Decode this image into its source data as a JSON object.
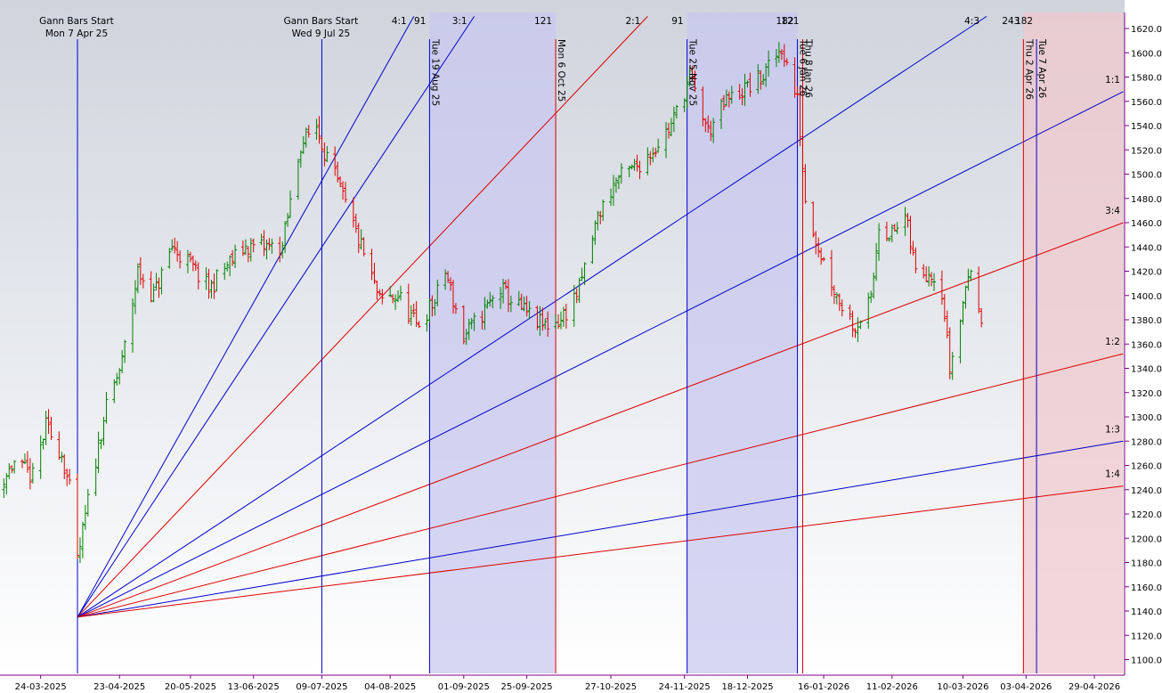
{
  "chart_data": {
    "type": "ohlc",
    "title": "",
    "xlabel": "",
    "ylabel": "",
    "ylim": [
      1090,
      1630
    ],
    "grid": false,
    "legend": "none",
    "y_ticks": [
      "1100.0",
      "1120.0",
      "1140.0",
      "1160.0",
      "1180.0",
      "1200.0",
      "1220.0",
      "1240.0",
      "1260.0",
      "1280.0",
      "1300.0",
      "1320.0",
      "1340.0",
      "1360.0",
      "1380.0",
      "1400.0",
      "1420.0",
      "1440.0",
      "1460.0",
      "1480.0",
      "1500.0",
      "1520.0",
      "1540.0",
      "1560.0",
      "1580.0",
      "1600.0",
      "1620.0"
    ],
    "x_ticks": [
      "24-03-2025",
      "23-04-2025",
      "20-05-2025",
      "13-06-2025",
      "09-07-2025",
      "04-08-2025",
      "01-09-2025",
      "25-09-2025",
      "27-10-2025",
      "24-11-2025",
      "18-12-2025",
      "16-01-2026",
      "11-02-2026",
      "10-03-2026",
      "03-04-2026",
      "29-04-2026"
    ],
    "colors": {
      "up": "#008000",
      "down": "#dd0000",
      "blue_line": "#0000cc",
      "red_line": "#dd0000",
      "blue_zone": "#c8c8f0",
      "red_zone": "#f0c8cc"
    },
    "price_path": [
      [
        "2025-03-05",
        1235
      ],
      [
        "2025-03-14",
        1262
      ],
      [
        "2025-03-21",
        1250
      ],
      [
        "2025-03-26",
        1292
      ],
      [
        "2025-04-01",
        1270
      ],
      [
        "2025-04-04",
        1240
      ],
      [
        "2025-04-07",
        1180
      ],
      [
        "2025-04-11",
        1230
      ],
      [
        "2025-04-17",
        1300
      ],
      [
        "2025-04-24",
        1345
      ],
      [
        "2025-04-30",
        1420
      ],
      [
        "2025-05-06",
        1400
      ],
      [
        "2025-05-13",
        1440
      ],
      [
        "2025-05-20",
        1425
      ],
      [
        "2025-05-27",
        1405
      ],
      [
        "2025-06-03",
        1425
      ],
      [
        "2025-06-10",
        1440
      ],
      [
        "2025-06-17",
        1440
      ],
      [
        "2025-06-24",
        1440
      ],
      [
        "2025-07-01",
        1525
      ],
      [
        "2025-07-07",
        1540
      ],
      [
        "2025-07-10",
        1520
      ],
      [
        "2025-07-17",
        1480
      ],
      [
        "2025-07-24",
        1440
      ],
      [
        "2025-07-31",
        1395
      ],
      [
        "2025-08-07",
        1400
      ],
      [
        "2025-08-14",
        1375
      ],
      [
        "2025-08-21",
        1395
      ],
      [
        "2025-08-25",
        1420
      ],
      [
        "2025-09-01",
        1365
      ],
      [
        "2025-09-08",
        1385
      ],
      [
        "2025-09-15",
        1405
      ],
      [
        "2025-09-22",
        1390
      ],
      [
        "2025-10-01",
        1375
      ],
      [
        "2025-10-08",
        1380
      ],
      [
        "2025-10-15",
        1405
      ],
      [
        "2025-10-22",
        1465
      ],
      [
        "2025-10-29",
        1495
      ],
      [
        "2025-11-05",
        1505
      ],
      [
        "2025-11-12",
        1520
      ],
      [
        "2025-11-19",
        1540
      ],
      [
        "2025-11-26",
        1580
      ],
      [
        "2025-12-03",
        1535
      ],
      [
        "2025-12-10",
        1560
      ],
      [
        "2025-12-17",
        1570
      ],
      [
        "2025-12-24",
        1580
      ],
      [
        "2025-12-31",
        1605
      ],
      [
        "2026-01-06",
        1560
      ],
      [
        "2026-01-09",
        1480
      ],
      [
        "2026-01-14",
        1440
      ],
      [
        "2026-01-21",
        1400
      ],
      [
        "2026-01-28",
        1375
      ],
      [
        "2026-02-03",
        1395
      ],
      [
        "2026-02-06",
        1460
      ],
      [
        "2026-02-11",
        1450
      ],
      [
        "2026-02-16",
        1465
      ],
      [
        "2026-02-20",
        1420
      ],
      [
        "2026-02-26",
        1420
      ],
      [
        "2026-03-02",
        1405
      ],
      [
        "2026-03-05",
        1340
      ],
      [
        "2026-03-09",
        1380
      ],
      [
        "2026-03-12",
        1420
      ],
      [
        "2026-03-17",
        1385
      ]
    ],
    "start_markers": [
      {
        "date": "2025-04-07",
        "label": "Gann Bars Start",
        "sublabel": "Mon 7 Apr 25"
      },
      {
        "date": "2025-07-09",
        "label": "Gann Bars Start",
        "sublabel": "Wed 9 Jul 25"
      }
    ],
    "time_markers": [
      {
        "date": "2025-08-19",
        "label": "Tue 19 Aug 25",
        "count": "91",
        "color": "blue"
      },
      {
        "date": "2025-10-06",
        "label": "Mon 6 Oct 25",
        "count": "121",
        "color": "red"
      },
      {
        "date": "2025-11-25",
        "label": "Tue 25 Nov 25",
        "count": "91",
        "color": "blue"
      },
      {
        "date": "2026-01-06",
        "label": "Tue 6 Jan 26",
        "count": "182",
        "color": "blue"
      },
      {
        "date": "2026-01-08",
        "label": "Thu 8 Jan 26",
        "count": "121",
        "color": "red"
      },
      {
        "date": "2026-04-02",
        "label": "Thu 2 Apr 26",
        "count": "243",
        "color": "red"
      },
      {
        "date": "2026-04-07",
        "label": "Tue 7 Apr 26",
        "count": "182",
        "color": "blue"
      }
    ],
    "zones": [
      {
        "from": "2025-08-19",
        "to": "2025-10-06",
        "color": "blue"
      },
      {
        "from": "2025-11-25",
        "to": "2026-01-06",
        "color": "blue"
      },
      {
        "from": "2026-04-02",
        "to": "2026-05-10",
        "color": "red"
      }
    ],
    "gann_fan": {
      "origin": [
        "2025-04-07",
        1135
      ],
      "lines": [
        {
          "label": "4:1",
          "end": [
            "2025-08-13",
            1630
          ],
          "color": "blue"
        },
        {
          "label": "3:1",
          "end": [
            "2025-09-05",
            1630
          ],
          "color": "blue"
        },
        {
          "label": "2:1",
          "end": [
            "2025-11-10",
            1630
          ],
          "color": "red"
        },
        {
          "label": "4:3",
          "end": [
            "2026-03-19",
            1630
          ],
          "color": "blue"
        },
        {
          "label": "1:1",
          "end": [
            "2026-05-10",
            1568
          ],
          "color": "blue"
        },
        {
          "label": "3:4",
          "end": [
            "2026-05-10",
            1460
          ],
          "color": "red"
        },
        {
          "label": "1:2",
          "end": [
            "2026-05-10",
            1352
          ],
          "color": "red"
        },
        {
          "label": "1:3",
          "end": [
            "2026-05-10",
            1280
          ],
          "color": "blue"
        },
        {
          "label": "1:4",
          "end": [
            "2026-05-10",
            1243
          ],
          "color": "red"
        }
      ]
    }
  }
}
